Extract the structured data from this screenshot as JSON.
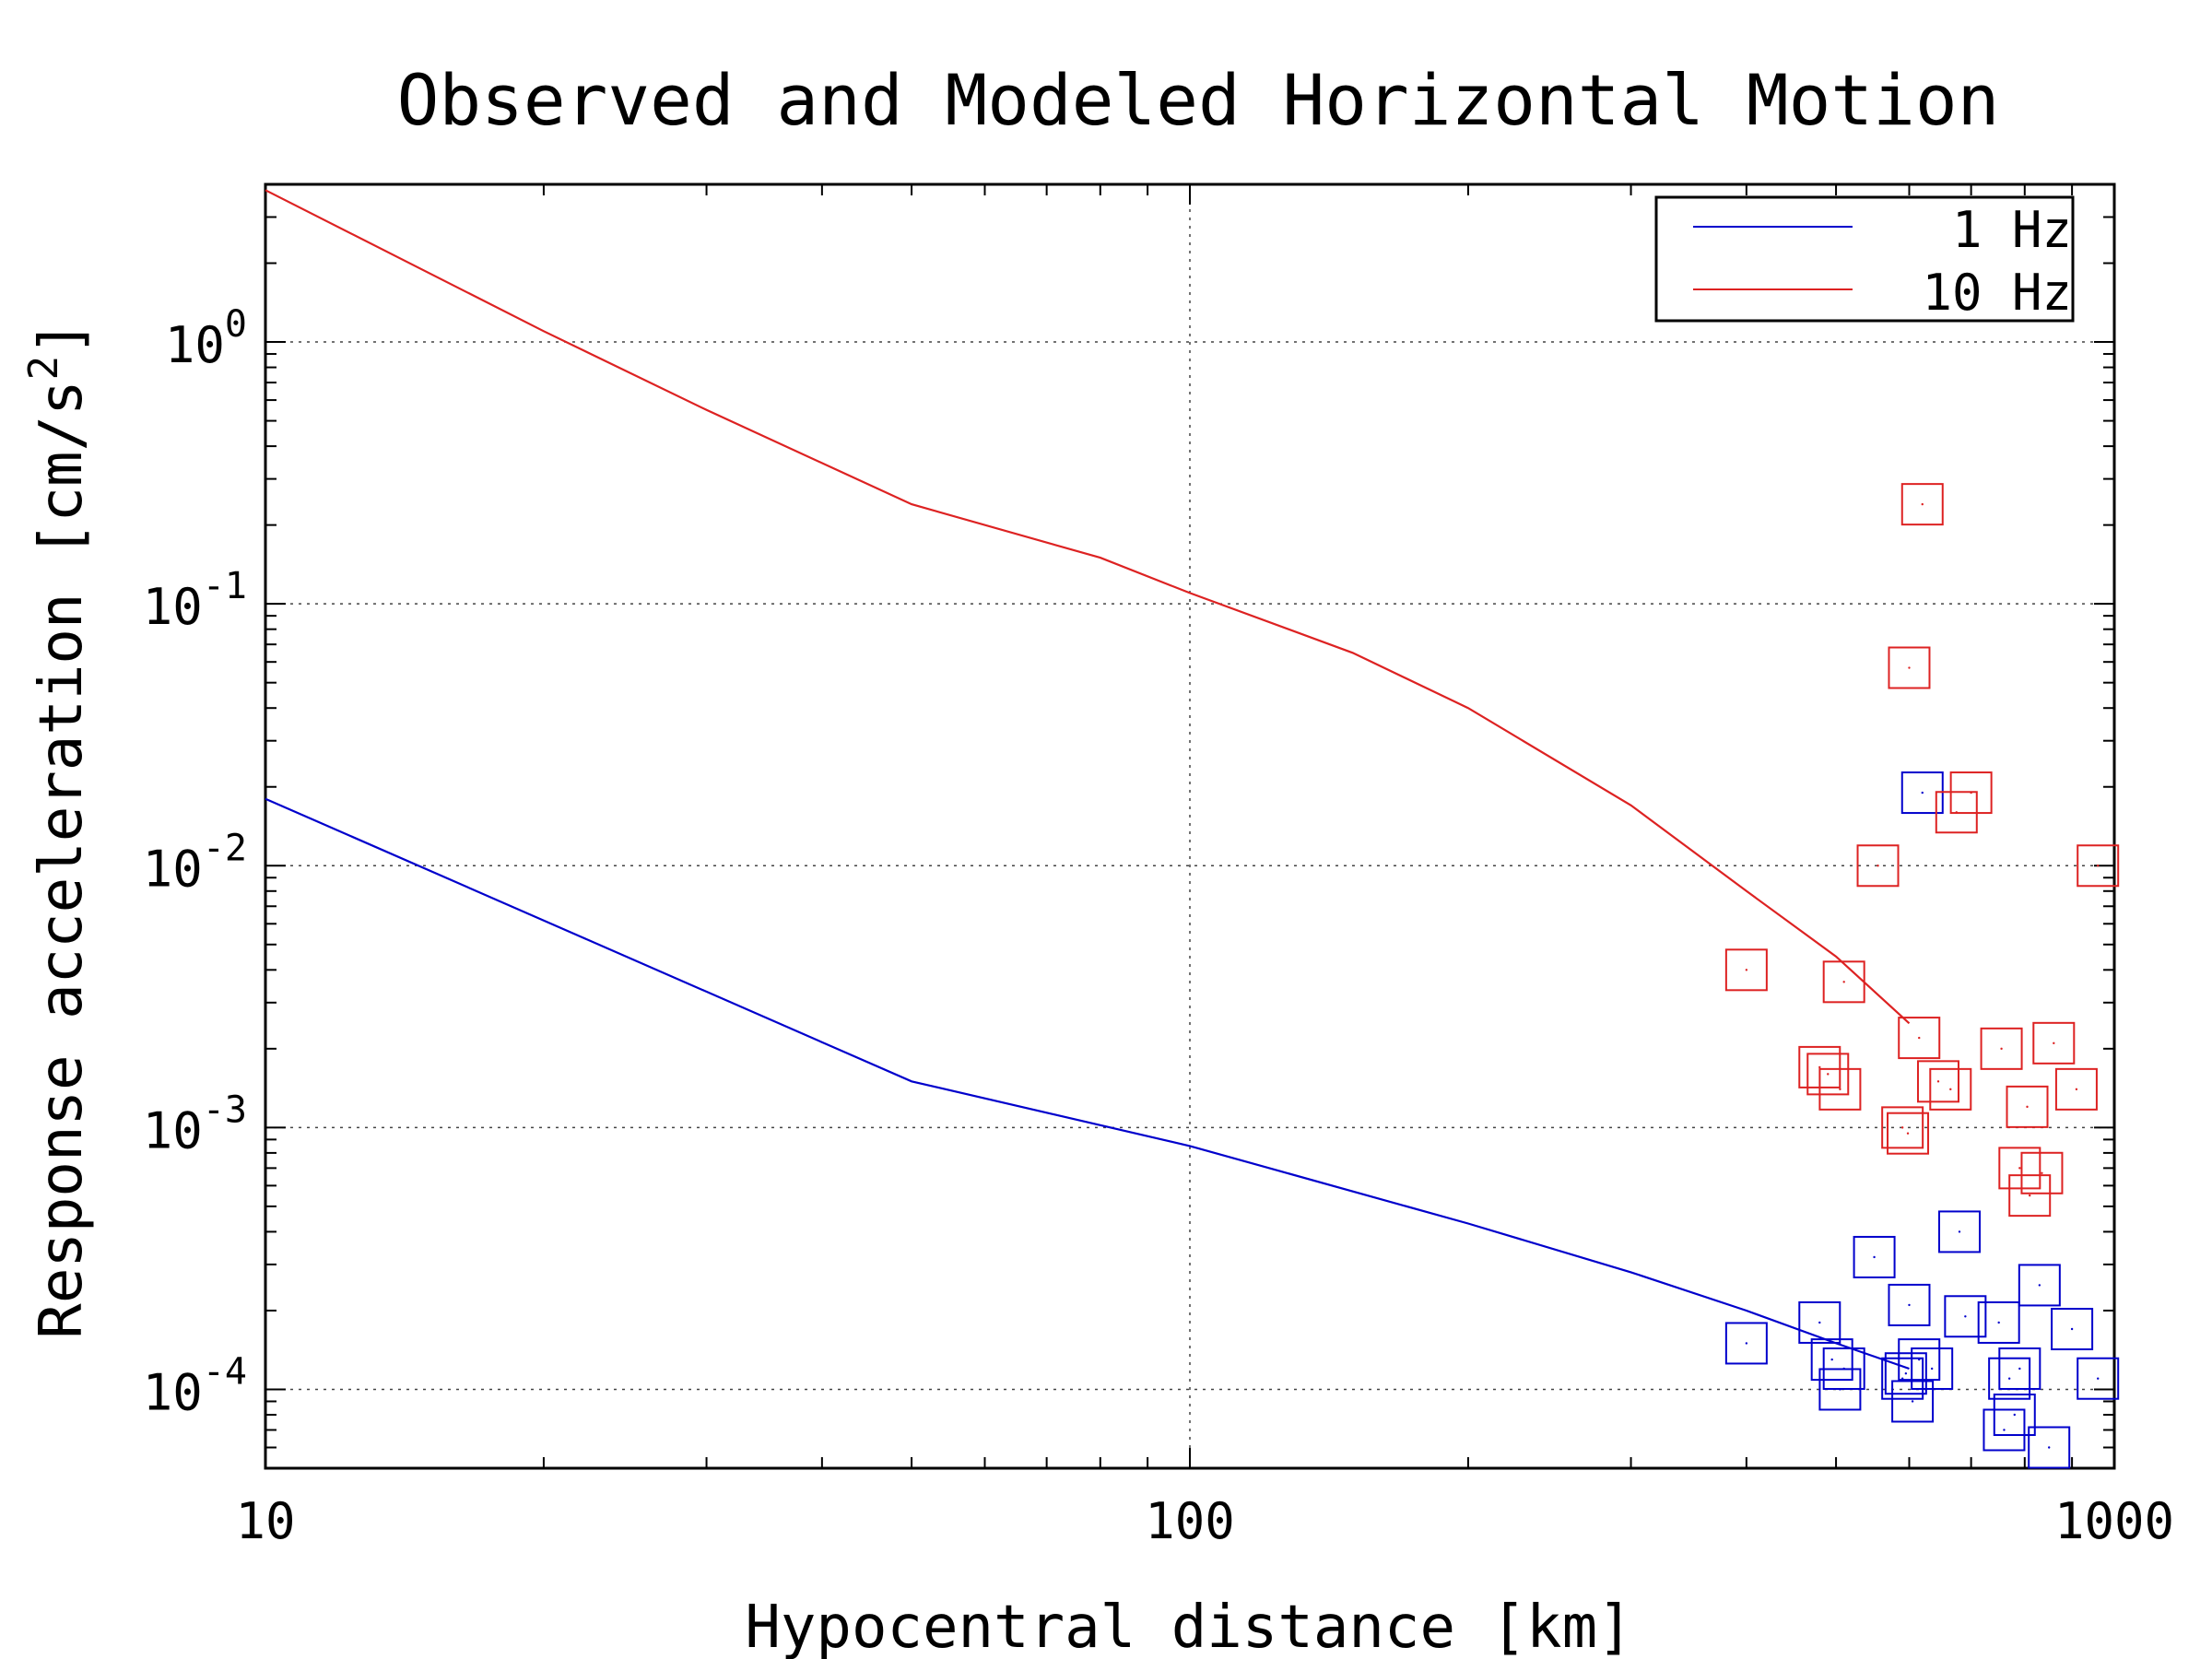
{
  "chart_data": {
    "type": "line",
    "title": "Observed and Modeled Horizontal Motion",
    "xlabel": "Hypocentral distance [km]",
    "ylabel_main": "Response acceleration [cm/s",
    "ylabel_sup": "2",
    "ylabel_end": "]",
    "x_scale": "log",
    "y_scale": "log",
    "xlim": [
      10,
      1000
    ],
    "ylim": [
      5e-05,
      4.0
    ],
    "x_ticks": [
      {
        "value": 10,
        "label": "10"
      },
      {
        "value": 100,
        "label": "100"
      },
      {
        "value": 1000,
        "label": "1000"
      }
    ],
    "y_ticks": [
      {
        "value": 1,
        "base": "10",
        "exp": "0"
      },
      {
        "value": 0.1,
        "base": "10",
        "exp": "-1"
      },
      {
        "value": 0.01,
        "base": "10",
        "exp": "-2"
      },
      {
        "value": 0.001,
        "base": "10",
        "exp": "-3"
      },
      {
        "value": 0.0001,
        "base": "10",
        "exp": "-4"
      }
    ],
    "grid": true,
    "legend_position": "top-right",
    "series": [
      {
        "name": "1 Hz",
        "color": "#0000cc",
        "line": {
          "x": [
            10,
            50,
            100,
            200,
            300,
            400,
            500,
            600
          ],
          "y": [
            0.018,
            0.0015,
            0.00085,
            0.00043,
            0.00028,
            0.0002,
            0.00015,
            0.00012
          ]
        },
        "observed": {
          "x": [
            400,
            480,
            495,
            505,
            510,
            550,
            590,
            595,
            600,
            605,
            615,
            620,
            635,
            680,
            690,
            750,
            760,
            770,
            780,
            790,
            830,
            850,
            900,
            960
          ],
          "y": [
            0.00015,
            0.00018,
            0.00013,
            0.0001,
            0.00012,
            0.00032,
            0.00011,
            0.000115,
            0.00021,
            9e-05,
            0.00013,
            0.019,
            0.00012,
            0.0004,
            0.00019,
            0.00018,
            7e-05,
            0.00011,
            8e-05,
            0.00012,
            0.00025,
            6e-05,
            0.00017,
            0.00011
          ]
        }
      },
      {
        "name": "10 Hz",
        "color": "#dd2222",
        "line": {
          "x": [
            10,
            20,
            30,
            50,
            80,
            100,
            150,
            200,
            300,
            400,
            500,
            600
          ],
          "y": [
            3.8,
            1.1,
            0.55,
            0.24,
            0.15,
            0.11,
            0.065,
            0.04,
            0.017,
            0.008,
            0.0045,
            0.0025
          ]
        },
        "observed": {
          "x": [
            400,
            480,
            490,
            505,
            510,
            555,
            590,
            598,
            600,
            615,
            620,
            645,
            665,
            675,
            700,
            755,
            790,
            805,
            810,
            835,
            860,
            910,
            960
          ],
          "y": [
            0.004,
            0.0017,
            0.0016,
            0.0014,
            0.0036,
            0.01,
            0.001,
            0.00095,
            0.057,
            0.0022,
            0.24,
            0.0015,
            0.0014,
            0.016,
            0.019,
            0.002,
            0.0007,
            0.0012,
            0.00055,
            0.00067,
            0.0021,
            0.0014,
            0.01
          ]
        }
      }
    ]
  }
}
